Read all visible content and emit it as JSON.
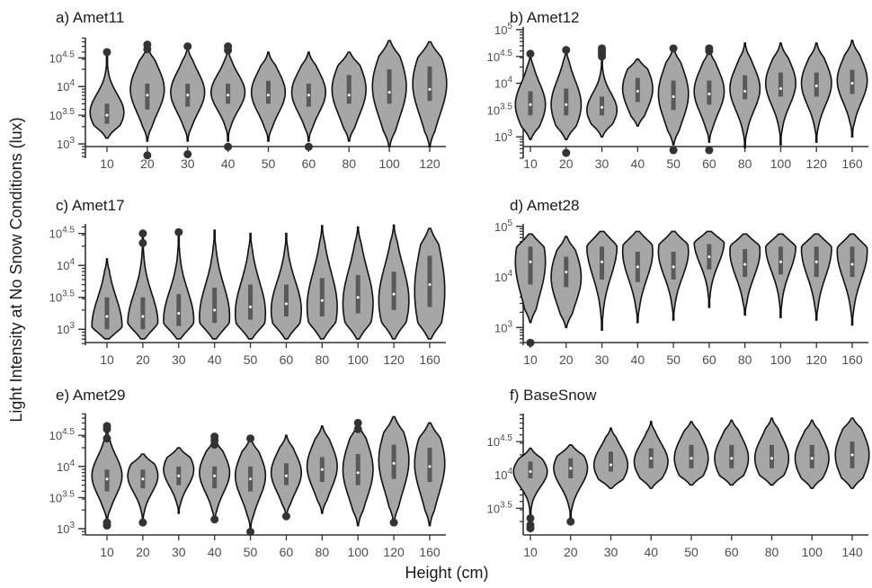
{
  "figure": {
    "ylabel": "Light Intensity at No Snow Conditions (lux)",
    "xlabel": "Height (cm)",
    "colors": {
      "violin_fill": "#a6a6a6",
      "violin_stroke": "#111111",
      "box": "#595959",
      "outlier": "#333333"
    }
  },
  "chart_data": [
    {
      "type": "violin",
      "title": "a) Amet11",
      "yscale": "log10",
      "ylim_log10": [
        2.75,
        4.85
      ],
      "yticks": [
        {
          "label": "10",
          "exp": "3"
        },
        {
          "label": "10",
          "exp": "3.5"
        },
        {
          "label": "10",
          "exp": "4"
        },
        {
          "label": "10",
          "exp": "4.5"
        }
      ],
      "categories": [
        "10",
        "20",
        "30",
        "40",
        "50",
        "60",
        "80",
        "100",
        "120"
      ],
      "groups": [
        {
          "min": 3.1,
          "max": 4.6,
          "q1": 3.35,
          "med": 3.5,
          "q3": 3.7,
          "mode": 3.55,
          "outliers": [
            4.6
          ]
        },
        {
          "min": 3.05,
          "max": 4.7,
          "q1": 3.6,
          "med": 3.85,
          "q3": 4.05,
          "mode": 3.95,
          "outliers": [
            2.8,
            4.65,
            4.73
          ]
        },
        {
          "min": 3.05,
          "max": 4.7,
          "q1": 3.65,
          "med": 3.85,
          "q3": 4.05,
          "mode": 3.9,
          "outliers": [
            2.82,
            4.7
          ]
        },
        {
          "min": 3.05,
          "max": 4.7,
          "q1": 3.7,
          "med": 3.85,
          "q3": 4.05,
          "mode": 3.9,
          "outliers": [
            2.95,
            4.63,
            4.7
          ]
        },
        {
          "min": 3.05,
          "max": 4.6,
          "q1": 3.7,
          "med": 3.85,
          "q3": 4.1,
          "mode": 3.9,
          "outliers": []
        },
        {
          "min": 3.05,
          "max": 4.6,
          "q1": 3.65,
          "med": 3.85,
          "q3": 4.05,
          "mode": 3.9,
          "outliers": [
            2.95
          ]
        },
        {
          "min": 3.05,
          "max": 4.6,
          "q1": 3.7,
          "med": 3.85,
          "q3": 4.2,
          "mode": 3.95,
          "outliers": []
        },
        {
          "min": 2.95,
          "max": 4.8,
          "q1": 3.7,
          "med": 3.9,
          "q3": 4.3,
          "mode": 4.0,
          "outliers": []
        },
        {
          "min": 2.95,
          "max": 4.78,
          "q1": 3.75,
          "med": 3.95,
          "q3": 4.35,
          "mode": 4.05,
          "outliers": []
        }
      ]
    },
    {
      "type": "violin",
      "title": "b) Amet12",
      "yscale": "log10",
      "ylim_log10": [
        2.6,
        5.05
      ],
      "yticks": [
        {
          "label": "10",
          "exp": "3"
        },
        {
          "label": "10",
          "exp": "3.5"
        },
        {
          "label": "10",
          "exp": "4"
        },
        {
          "label": "10",
          "exp": "4.5"
        },
        {
          "label": "10",
          "exp": "5"
        }
      ],
      "categories": [
        "10",
        "20",
        "30",
        "40",
        "50",
        "60",
        "80",
        "100",
        "120",
        "160"
      ],
      "groups": [
        {
          "min": 2.95,
          "max": 4.55,
          "q1": 3.4,
          "med": 3.6,
          "q3": 3.85,
          "mode": 3.6,
          "outliers": [
            4.55
          ]
        },
        {
          "min": 2.95,
          "max": 4.65,
          "q1": 3.4,
          "med": 3.6,
          "q3": 3.9,
          "mode": 3.6,
          "outliers": [
            2.7,
            4.62
          ]
        },
        {
          "min": 3.0,
          "max": 4.6,
          "q1": 3.4,
          "med": 3.55,
          "q3": 3.75,
          "mode": 3.5,
          "outliers": [
            4.5,
            4.55,
            4.6,
            4.65
          ]
        },
        {
          "min": 3.2,
          "max": 4.45,
          "q1": 3.65,
          "med": 3.85,
          "q3": 4.1,
          "mode": 3.9,
          "outliers": []
        },
        {
          "min": 2.85,
          "max": 4.65,
          "q1": 3.5,
          "med": 3.75,
          "q3": 4.05,
          "mode": 3.8,
          "outliers": [
            2.75,
            4.65
          ]
        },
        {
          "min": 2.9,
          "max": 4.65,
          "q1": 3.6,
          "med": 3.8,
          "q3": 4.05,
          "mode": 3.85,
          "outliers": [
            2.75,
            4.6,
            4.65
          ]
        },
        {
          "min": 2.8,
          "max": 4.75,
          "q1": 3.7,
          "med": 3.85,
          "q3": 4.15,
          "mode": 3.9,
          "outliers": []
        },
        {
          "min": 2.85,
          "max": 4.75,
          "q1": 3.75,
          "med": 3.9,
          "q3": 4.2,
          "mode": 4.0,
          "outliers": []
        },
        {
          "min": 2.9,
          "max": 4.75,
          "q1": 3.75,
          "med": 3.95,
          "q3": 4.2,
          "mode": 4.0,
          "outliers": []
        },
        {
          "min": 3.0,
          "max": 4.8,
          "q1": 3.8,
          "med": 4.0,
          "q3": 4.25,
          "mode": 4.05,
          "outliers": []
        }
      ]
    },
    {
      "type": "violin",
      "title": "c) Amet17",
      "yscale": "log10",
      "ylim_log10": [
        2.75,
        4.65
      ],
      "yticks": [
        {
          "label": "10",
          "exp": "3"
        },
        {
          "label": "10",
          "exp": "3.5"
        },
        {
          "label": "10",
          "exp": "4"
        },
        {
          "label": "10",
          "exp": "4.5"
        }
      ],
      "categories": [
        "10",
        "20",
        "30",
        "40",
        "50",
        "60",
        "80",
        "100",
        "120",
        "160"
      ],
      "groups": [
        {
          "min": 2.85,
          "max": 4.1,
          "q1": 3.0,
          "med": 3.2,
          "q3": 3.5,
          "mode": 3.05,
          "outliers": []
        },
        {
          "min": 2.85,
          "max": 4.5,
          "q1": 3.0,
          "med": 3.2,
          "q3": 3.5,
          "mode": 3.1,
          "outliers": [
            4.35,
            4.5
          ]
        },
        {
          "min": 2.85,
          "max": 4.5,
          "q1": 3.05,
          "med": 3.25,
          "q3": 3.55,
          "mode": 3.15,
          "outliers": [
            4.52
          ]
        },
        {
          "min": 2.85,
          "max": 4.55,
          "q1": 3.1,
          "med": 3.3,
          "q3": 3.65,
          "mode": 3.2,
          "outliers": []
        },
        {
          "min": 2.85,
          "max": 4.5,
          "q1": 3.15,
          "med": 3.35,
          "q3": 3.7,
          "mode": 3.25,
          "outliers": []
        },
        {
          "min": 2.85,
          "max": 4.5,
          "q1": 3.2,
          "med": 3.4,
          "q3": 3.7,
          "mode": 3.3,
          "outliers": []
        },
        {
          "min": 2.85,
          "max": 4.62,
          "q1": 3.2,
          "med": 3.45,
          "q3": 3.8,
          "mode": 3.35,
          "outliers": []
        },
        {
          "min": 2.85,
          "max": 4.6,
          "q1": 3.25,
          "med": 3.5,
          "q3": 3.85,
          "mode": 3.4,
          "outliers": []
        },
        {
          "min": 2.85,
          "max": 4.63,
          "q1": 3.3,
          "med": 3.55,
          "q3": 3.9,
          "mode": 3.45,
          "outliers": []
        },
        {
          "min": 2.85,
          "max": 4.58,
          "q1": 3.35,
          "med": 3.7,
          "q3": 4.15,
          "mode": 3.6,
          "outliers": []
        }
      ]
    },
    {
      "type": "violin",
      "title": "d) Amet28",
      "yscale": "log10",
      "ylim_log10": [
        2.65,
        5.05
      ],
      "yticks": [
        {
          "label": "10",
          "exp": "3"
        },
        {
          "label": "10",
          "exp": "4"
        },
        {
          "label": "10",
          "exp": "5"
        }
      ],
      "categories": [
        "10",
        "20",
        "30",
        "40",
        "50",
        "60",
        "80",
        "100",
        "120",
        "160"
      ],
      "groups": [
        {
          "min": 3.1,
          "max": 4.85,
          "q1": 3.85,
          "med": 4.3,
          "q3": 4.6,
          "mode": 4.3,
          "outliers": [
            2.7
          ]
        },
        {
          "min": 3.0,
          "max": 4.8,
          "q1": 3.8,
          "med": 4.1,
          "q3": 4.4,
          "mode": 4.0,
          "outliers": []
        },
        {
          "min": 2.95,
          "max": 4.9,
          "q1": 3.95,
          "med": 4.3,
          "q3": 4.6,
          "mode": 4.6,
          "outliers": []
        },
        {
          "min": 3.1,
          "max": 4.9,
          "q1": 3.9,
          "med": 4.2,
          "q3": 4.5,
          "mode": 4.5,
          "outliers": []
        },
        {
          "min": 3.15,
          "max": 4.9,
          "q1": 3.95,
          "med": 4.2,
          "q3": 4.5,
          "mode": 4.5,
          "outliers": []
        },
        {
          "min": 3.4,
          "max": 4.9,
          "q1": 4.15,
          "med": 4.4,
          "q3": 4.65,
          "mode": 4.7,
          "outliers": []
        },
        {
          "min": 3.25,
          "max": 4.85,
          "q1": 4.0,
          "med": 4.25,
          "q3": 4.55,
          "mode": 4.5,
          "outliers": []
        },
        {
          "min": 3.2,
          "max": 4.85,
          "q1": 4.05,
          "med": 4.3,
          "q3": 4.6,
          "mode": 4.6,
          "outliers": []
        },
        {
          "min": 3.15,
          "max": 4.85,
          "q1": 4.0,
          "med": 4.3,
          "q3": 4.6,
          "mode": 4.55,
          "outliers": []
        },
        {
          "min": 3.05,
          "max": 4.85,
          "q1": 4.0,
          "med": 4.25,
          "q3": 4.6,
          "mode": 4.5,
          "outliers": []
        }
      ]
    },
    {
      "type": "violin",
      "title": "e) Amet29",
      "yscale": "log10",
      "ylim_log10": [
        2.9,
        4.85
      ],
      "yticks": [
        {
          "label": "10",
          "exp": "3"
        },
        {
          "label": "10",
          "exp": "3.5"
        },
        {
          "label": "10",
          "exp": "4"
        },
        {
          "label": "10",
          "exp": "4.5"
        }
      ],
      "categories": [
        "10",
        "20",
        "30",
        "40",
        "50",
        "60",
        "80",
        "100",
        "120",
        "160"
      ],
      "groups": [
        {
          "min": 3.1,
          "max": 4.65,
          "q1": 3.6,
          "med": 3.8,
          "q3": 3.95,
          "mode": 3.85,
          "outliers": [
            3.05,
            3.1,
            4.45,
            4.6,
            4.65
          ]
        },
        {
          "min": 3.1,
          "max": 4.2,
          "q1": 3.65,
          "med": 3.8,
          "q3": 3.95,
          "mode": 3.85,
          "outliers": [
            3.1
          ]
        },
        {
          "min": 3.25,
          "max": 4.3,
          "q1": 3.7,
          "med": 3.85,
          "q3": 4.0,
          "mode": 3.95,
          "outliers": []
        },
        {
          "min": 3.1,
          "max": 4.45,
          "q1": 3.65,
          "med": 3.85,
          "q3": 4.0,
          "mode": 3.9,
          "outliers": [
            3.15,
            4.35,
            4.42,
            4.48
          ]
        },
        {
          "min": 3.0,
          "max": 4.45,
          "q1": 3.6,
          "med": 3.8,
          "q3": 4.0,
          "mode": 3.85,
          "outliers": [
            2.95,
            4.45
          ]
        },
        {
          "min": 3.2,
          "max": 4.5,
          "q1": 3.7,
          "med": 3.85,
          "q3": 4.05,
          "mode": 3.9,
          "outliers": [
            3.2
          ]
        },
        {
          "min": 3.25,
          "max": 4.65,
          "q1": 3.75,
          "med": 3.95,
          "q3": 4.15,
          "mode": 4.0,
          "outliers": []
        },
        {
          "min": 3.05,
          "max": 4.7,
          "q1": 3.7,
          "med": 3.9,
          "q3": 4.2,
          "mode": 3.95,
          "outliers": [
            4.6,
            4.7
          ]
        },
        {
          "min": 3.1,
          "max": 4.8,
          "q1": 3.8,
          "med": 4.05,
          "q3": 4.35,
          "mode": 4.1,
          "outliers": [
            3.1
          ]
        },
        {
          "min": 3.05,
          "max": 4.7,
          "q1": 3.75,
          "med": 4.0,
          "q3": 4.3,
          "mode": 4.05,
          "outliers": []
        }
      ]
    },
    {
      "type": "violin",
      "title": "f) BaseSnow",
      "yscale": "log10",
      "ylim_log10": [
        3.1,
        4.92
      ],
      "yticks": [
        {
          "label": "10",
          "exp": "3.5"
        },
        {
          "label": "10",
          "exp": "4"
        },
        {
          "label": "10",
          "exp": "4.5"
        }
      ],
      "categories": [
        "10",
        "20",
        "30",
        "40",
        "50",
        "60",
        "80",
        "100",
        "140"
      ],
      "groups": [
        {
          "min": 3.35,
          "max": 4.4,
          "q1": 3.95,
          "med": 4.05,
          "q3": 4.2,
          "mode": 4.05,
          "outliers": [
            3.2,
            3.25,
            3.35
          ]
        },
        {
          "min": 3.35,
          "max": 4.45,
          "q1": 3.95,
          "med": 4.1,
          "q3": 4.25,
          "mode": 4.1,
          "outliers": [
            3.3
          ]
        },
        {
          "min": 3.8,
          "max": 4.7,
          "q1": 4.05,
          "med": 4.15,
          "q3": 4.35,
          "mode": 4.15,
          "outliers": []
        },
        {
          "min": 3.8,
          "max": 4.8,
          "q1": 4.1,
          "med": 4.25,
          "q3": 4.4,
          "mode": 4.2,
          "outliers": []
        },
        {
          "min": 3.85,
          "max": 4.8,
          "q1": 4.1,
          "med": 4.25,
          "q3": 4.45,
          "mode": 4.25,
          "outliers": []
        },
        {
          "min": 3.85,
          "max": 4.82,
          "q1": 4.1,
          "med": 4.25,
          "q3": 4.45,
          "mode": 4.25,
          "outliers": []
        },
        {
          "min": 3.85,
          "max": 4.85,
          "q1": 4.1,
          "med": 4.25,
          "q3": 4.45,
          "mode": 4.25,
          "outliers": []
        },
        {
          "min": 3.8,
          "max": 4.82,
          "q1": 4.1,
          "med": 4.25,
          "q3": 4.45,
          "mode": 4.25,
          "outliers": []
        },
        {
          "min": 3.8,
          "max": 4.85,
          "q1": 4.1,
          "med": 4.3,
          "q3": 4.5,
          "mode": 4.3,
          "outliers": []
        }
      ]
    }
  ]
}
